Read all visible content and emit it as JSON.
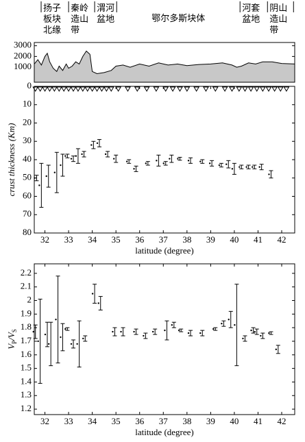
{
  "chart_data": [
    {
      "type": "area",
      "regions": [
        {
          "lines": [
            "扬子",
            "板块",
            "北缘"
          ]
        },
        {
          "lines": [
            "秦岭",
            "造山",
            "带"
          ]
        },
        {
          "lines": [
            "渭河",
            "盆地"
          ]
        },
        {
          "lines": [
            "鄂尔多斯块体"
          ]
        },
        {
          "lines": [
            "河套",
            "盆地"
          ]
        },
        {
          "lines": [
            "阴山",
            "造山",
            "带"
          ]
        }
      ],
      "boundaries": [
        31.84,
        33.0,
        34.1,
        35.03,
        40.24,
        41.4,
        42.5
      ],
      "x": [
        31.55,
        31.7,
        31.85,
        32.0,
        32.1,
        32.2,
        32.35,
        32.5,
        32.6,
        32.75,
        32.9,
        33.0,
        33.15,
        33.3,
        33.45,
        33.6,
        33.75,
        33.9,
        34.0,
        34.2,
        34.5,
        34.8,
        35.0,
        35.3,
        35.6,
        36.0,
        36.4,
        36.8,
        37.2,
        37.6,
        38.0,
        38.5,
        39.0,
        39.5,
        39.9,
        40.1,
        40.3,
        40.6,
        40.9,
        41.2,
        41.6,
        42.0,
        42.55
      ],
      "values": [
        1300,
        1700,
        1200,
        2000,
        2300,
        1500,
        900,
        600,
        1100,
        700,
        1300,
        900,
        1100,
        1500,
        1300,
        2000,
        2500,
        2200,
        600,
        400,
        500,
        700,
        1100,
        1200,
        1000,
        1300,
        1100,
        1400,
        1200,
        1300,
        1150,
        1250,
        1300,
        1400,
        1200,
        1000,
        1100,
        1400,
        1300,
        1500,
        1500,
        1350,
        1300
      ],
      "color": "#c8c8c8",
      "xlim": [
        31.55,
        42.55
      ],
      "ylim": [
        -400,
        3300
      ],
      "yticks": [
        1000,
        2000,
        3000
      ]
    },
    {
      "type": "errorbar",
      "stations": [
        31.6,
        31.8,
        32.0,
        32.2,
        32.4,
        32.6,
        32.8,
        33.0,
        33.2,
        33.4,
        33.6,
        33.8,
        34.0,
        34.2,
        34.4,
        34.6,
        34.8,
        35.1,
        35.5,
        35.9,
        36.3,
        36.7,
        37.1,
        37.4,
        37.7,
        38.0,
        38.4,
        38.8,
        39.2,
        39.6,
        39.9,
        40.2,
        40.45,
        40.7,
        40.95,
        41.2,
        41.45,
        41.7,
        41.95,
        42.2
      ],
      "x": [
        31.65,
        31.85,
        32.15,
        32.5,
        32.75,
        32.95,
        33.2,
        33.4,
        33.65,
        34.05,
        34.3,
        34.65,
        35.0,
        35.55,
        35.85,
        36.35,
        36.8,
        37.1,
        37.35,
        37.7,
        38.15,
        38.65,
        39.05,
        39.45,
        39.75,
        40.0,
        40.3,
        40.6,
        40.85,
        41.15,
        41.55
      ],
      "values": [
        50,
        54,
        49,
        47,
        43,
        38,
        39.5,
        38,
        37,
        32,
        31,
        37,
        39.5,
        41,
        45,
        42,
        40.5,
        42,
        39.5,
        39.5,
        40.5,
        41,
        42,
        43,
        42.5,
        45,
        44,
        44,
        44,
        44,
        48
      ],
      "errors": [
        1.5,
        12,
        6,
        11,
        6,
        1,
        1.5,
        4,
        1.5,
        2,
        2,
        1.5,
        2,
        1,
        1.5,
        1,
        3,
        1,
        2,
        0.8,
        1.5,
        1,
        1.5,
        1,
        2,
        3,
        1,
        1,
        1,
        1.5,
        2
      ],
      "xlim": [
        31.55,
        42.55
      ],
      "ylim": [
        0,
        80
      ],
      "inverted": true,
      "yticks": [
        0,
        10,
        20,
        30,
        40,
        50,
        60,
        70,
        80
      ],
      "xticks": [
        32,
        33,
        34,
        35,
        36,
        37,
        38,
        39,
        40,
        41,
        42
      ],
      "xlabel": "latitude (degree)",
      "ylabel": [
        "crust thickness (Km)"
      ]
    },
    {
      "type": "errorbar",
      "x": [
        31.6,
        31.8,
        32.1,
        32.25,
        32.55,
        32.75,
        32.95,
        33.2,
        33.45,
        33.7,
        34.1,
        34.35,
        34.95,
        35.3,
        35.85,
        36.25,
        36.65,
        37.15,
        37.45,
        37.75,
        38.15,
        38.65,
        39.2,
        39.55,
        39.85,
        40.1,
        40.45,
        40.8,
        40.95,
        41.2,
        41.55,
        41.85
      ],
      "values": [
        1.77,
        1.7,
        1.75,
        1.68,
        1.86,
        1.73,
        1.79,
        1.68,
        1.68,
        1.72,
        2.05,
        1.98,
        1.77,
        1.77,
        1.77,
        1.74,
        1.77,
        1.78,
        1.82,
        1.78,
        1.76,
        1.76,
        1.79,
        1.83,
        1.86,
        1.82,
        1.72,
        1.78,
        1.77,
        1.74,
        1.76,
        1.64
      ],
      "errors": [
        0.05,
        0.31,
        0.09,
        0.16,
        0.32,
        0.1,
        0.01,
        0.03,
        0.17,
        0.02,
        0.07,
        0.05,
        0.03,
        0.03,
        0.02,
        0.02,
        0.02,
        0.07,
        0.02,
        0.01,
        0.02,
        0.02,
        0.01,
        0.02,
        0.06,
        0.3,
        0.02,
        0.02,
        0.02,
        0.02,
        0.01,
        0.03
      ],
      "xlim": [
        31.55,
        42.55
      ],
      "ylim": [
        1.16,
        2.27
      ],
      "inverted": false,
      "yticks": [
        1.2,
        1.3,
        1.4,
        1.5,
        1.6,
        1.7,
        1.8,
        1.9,
        2,
        2.1,
        2.2
      ],
      "xticks": [
        32,
        33,
        34,
        35,
        36,
        37,
        38,
        39,
        40,
        41,
        42
      ],
      "xlabel": "latitude (degree)",
      "ylabel": [
        "V",
        "P",
        "/V",
        "S"
      ]
    }
  ]
}
